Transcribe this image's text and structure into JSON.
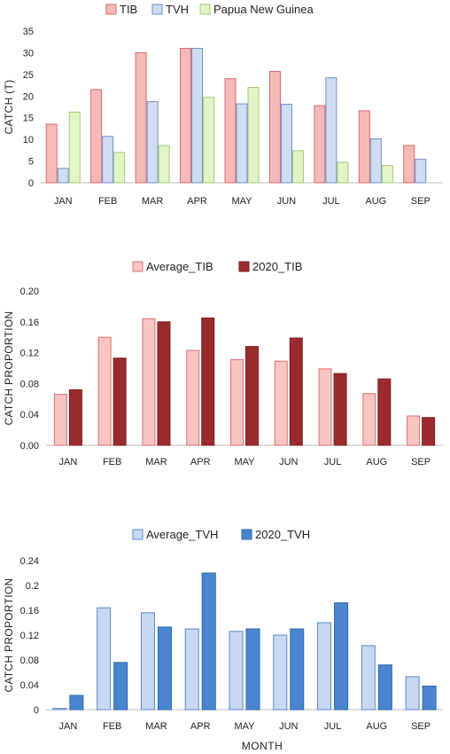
{
  "chart_data": [
    {
      "type": "bar",
      "categories": [
        "JAN",
        "FEB",
        "MAR",
        "APR",
        "MAY",
        "JUN",
        "JUL",
        "AUG",
        "SEP"
      ],
      "ylabel": "CATCH (T)",
      "xlabel": "",
      "ylim": [
        0,
        35
      ],
      "yticks": [
        "0",
        "5",
        "10",
        "15",
        "20",
        "25",
        "30",
        "35"
      ],
      "legend_position": "top",
      "series": [
        {
          "name": "TIB",
          "color": "#f6b9b9",
          "stroke": "#d86a6a",
          "values": [
            13.5,
            21.5,
            30,
            31,
            24,
            25.7,
            17.8,
            16.6,
            8.6
          ]
        },
        {
          "name": "TVH",
          "color": "#cfdcf2",
          "stroke": "#6f8fc8",
          "values": [
            3.3,
            10.7,
            18.7,
            31,
            18.2,
            18.1,
            24.2,
            10.1,
            5.4
          ]
        },
        {
          "name": "Papua New Guinea",
          "color": "#e3f5c6",
          "stroke": "#a4c87a",
          "values": [
            16.3,
            7,
            8.6,
            19.7,
            22,
            7.4,
            4.7,
            4,
            null
          ]
        }
      ]
    },
    {
      "type": "bar",
      "categories": [
        "JAN",
        "FEB",
        "MAR",
        "APR",
        "MAY",
        "JUN",
        "JUL",
        "AUG",
        "SEP"
      ],
      "ylabel": "CATCH PROPORTION",
      "xlabel": "",
      "ylim": [
        0,
        0.2
      ],
      "yticks": [
        "0.00",
        "0.04",
        "0.08",
        "0.12",
        "0.16",
        "0.20"
      ],
      "legend_position": "top",
      "series": [
        {
          "name": "Average_TIB",
          "color": "#f8c4c4",
          "stroke": "#d87070",
          "values": [
            0.066,
            0.14,
            0.164,
            0.123,
            0.111,
            0.109,
            0.099,
            0.067,
            0.038
          ]
        },
        {
          "name": "2020_TIB",
          "color": "#9b2b2f",
          "stroke": "#7a1e22",
          "values": [
            0.072,
            0.113,
            0.16,
            0.165,
            0.128,
            0.139,
            0.093,
            0.086,
            0.036
          ]
        }
      ]
    },
    {
      "type": "bar",
      "categories": [
        "JAN",
        "FEB",
        "MAR",
        "APR",
        "MAY",
        "JUN",
        "JUL",
        "AUG",
        "SEP"
      ],
      "ylabel": "CATCH PROPORTION",
      "xlabel": "MONTH",
      "ylim": [
        0,
        0.24
      ],
      "yticks": [
        "0",
        "0.04",
        "0.08",
        "0.12",
        "0.16",
        "0.2",
        "0.24"
      ],
      "legend_position": "top",
      "series": [
        {
          "name": "Average_TVH",
          "color": "#c7d9f1",
          "stroke": "#5b86c6",
          "values": [
            0.002,
            0.164,
            0.156,
            0.13,
            0.126,
            0.12,
            0.14,
            0.103,
            0.053
          ]
        },
        {
          "name": "2020_TVH",
          "color": "#4a86cf",
          "stroke": "#2f66aa",
          "values": [
            0.023,
            0.076,
            0.133,
            0.22,
            0.13,
            0.13,
            0.172,
            0.072,
            0.038
          ]
        }
      ]
    }
  ]
}
